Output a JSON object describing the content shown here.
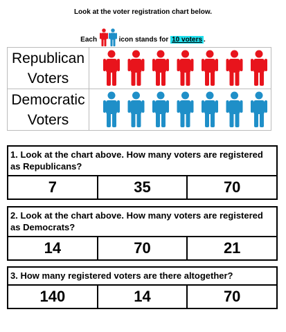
{
  "header": {
    "instruction": "Look at the voter registration chart below.",
    "key_prefix": "Each",
    "key_suffix": "icon stands for",
    "key_value": "10 voters",
    "key_end": "."
  },
  "pictograph": {
    "rows": [
      {
        "label": "Republican Voters",
        "icons": 7,
        "color": "#e8141c"
      },
      {
        "label": "Democratic Voters",
        "icons": 7,
        "color": "#1f8fc8"
      }
    ]
  },
  "questions": [
    {
      "text": "1. Look at the chart above.  How many voters are registered as Republicans?",
      "options": [
        "7",
        "35",
        "70"
      ]
    },
    {
      "text": "2. Look at the chart above.  How many voters are registered as Democrats?",
      "options": [
        "14",
        "70",
        "21"
      ]
    },
    {
      "text": "3.  How many registered voters are there altogether?",
      "options": [
        "140",
        "14",
        "70"
      ]
    }
  ]
}
